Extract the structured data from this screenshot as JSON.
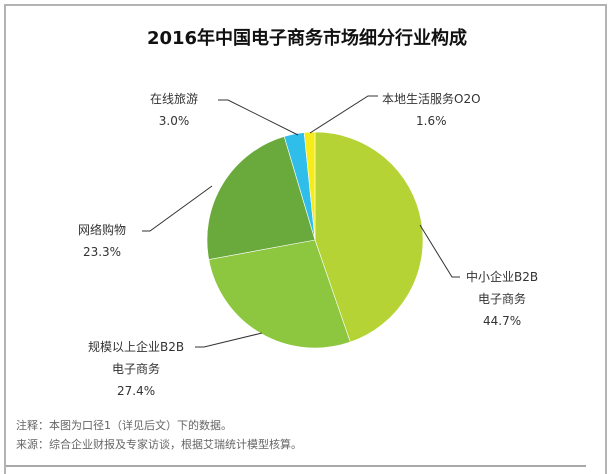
{
  "chart_data": {
    "type": "pie",
    "title": "2016年中国电子商务市场细分行业构成",
    "start_angle": "12 o'clock",
    "direction": "clockwise",
    "slices": [
      {
        "label": "中小企业B2B电子商务",
        "value": 44.7,
        "display": "44.7%",
        "color": "#b5d334"
      },
      {
        "label": "规模以上企业B2B电子商务",
        "value": 27.4,
        "display": "27.4%",
        "color": "#8dc63f"
      },
      {
        "label": "网络购物",
        "value": 23.3,
        "display": "23.3%",
        "color": "#6aaa3c"
      },
      {
        "label": "在线旅游",
        "value": 3.0,
        "display": "3.0%",
        "color": "#2fbdea"
      },
      {
        "label": "本地生活服务O2O",
        "value": 1.6,
        "display": "1.6%",
        "color": "#f5ec1a"
      }
    ],
    "legend": "none (leader-line data labels)"
  },
  "labels": {
    "smb_b2b": {
      "line1": "中小企业B2B",
      "line2": "电子商务",
      "pct": "44.7%"
    },
    "large_b2b": {
      "line1": "规模以上企业B2B",
      "line2": "电子商务",
      "pct": "27.4%"
    },
    "online_shopping": {
      "line1": "网络购物",
      "pct": "23.3%"
    },
    "online_travel": {
      "line1": "在线旅游",
      "pct": "3.0%"
    },
    "local_o2o": {
      "line1": "本地生活服务O2O",
      "pct": "1.6%"
    }
  },
  "notes": {
    "note": "注释：本图为口径1（详见后文）下的数据。",
    "source": "来源：综合企业财报及专家访谈，根据艾瑞统计模型核算。"
  }
}
